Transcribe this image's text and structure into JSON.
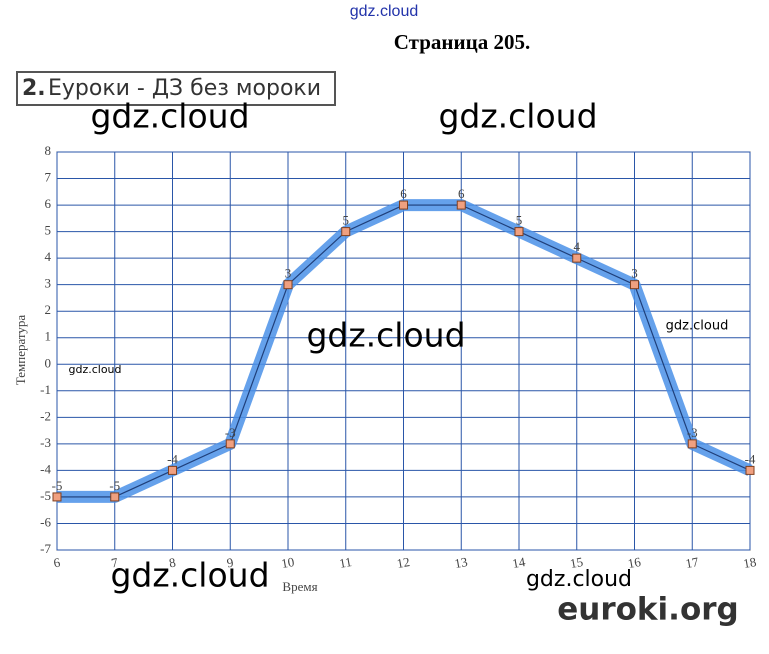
{
  "page": {
    "top_link": "gdz.cloud",
    "title": "Страница 205.",
    "task_number": "2.",
    "task_text": "Еуроки - ДЗ без мороки",
    "watermarks": [
      "gdz.cloud",
      "gdz.cloud",
      "gdz.cloud",
      "gdz.cloud",
      "gdz.cloud",
      "gdz.cloud",
      "gdz.cloud"
    ],
    "logo": "euroki.org"
  },
  "chart_data": {
    "type": "line",
    "x_label": "Время",
    "y_label": "Температура",
    "x": [
      6,
      7,
      8,
      9,
      10,
      11,
      12,
      13,
      14,
      15,
      16,
      17,
      18
    ],
    "series": [
      {
        "name": "Температура",
        "color": "#4a90e8",
        "values": [
          -5,
          -5,
          -4,
          -3,
          3,
          5,
          6,
          6,
          5,
          4,
          3,
          -3,
          -4
        ]
      }
    ],
    "xlim": [
      6,
      18
    ],
    "xticks": [
      6,
      7,
      8,
      9,
      10,
      11,
      12,
      13,
      14,
      15,
      16,
      17,
      18
    ],
    "ylim": [
      -7,
      8
    ],
    "yticks": [
      -7,
      -6,
      -5,
      -4,
      -3,
      -2,
      -1,
      0,
      1,
      2,
      3,
      4,
      5,
      6,
      7,
      8
    ],
    "grid": true
  }
}
